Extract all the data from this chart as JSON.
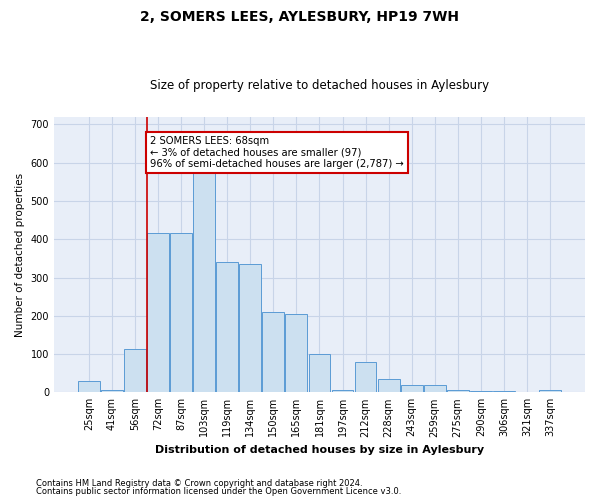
{
  "title": "2, SOMERS LEES, AYLESBURY, HP19 7WH",
  "subtitle": "Size of property relative to detached houses in Aylesbury",
  "xlabel": "Distribution of detached houses by size in Aylesbury",
  "ylabel": "Number of detached properties",
  "footnote1": "Contains HM Land Registry data © Crown copyright and database right 2024.",
  "footnote2": "Contains public sector information licensed under the Open Government Licence v3.0.",
  "bar_color": "#cce0f0",
  "bar_edge_color": "#5b9bd5",
  "annotation_box_color": "#ffffff",
  "annotation_border_color": "#cc0000",
  "vline_color": "#cc0000",
  "grid_color": "#c8d4e8",
  "background_color": "#e8eef8",
  "categories": [
    "25sqm",
    "41sqm",
    "56sqm",
    "72sqm",
    "87sqm",
    "103sqm",
    "119sqm",
    "134sqm",
    "150sqm",
    "165sqm",
    "181sqm",
    "197sqm",
    "212sqm",
    "228sqm",
    "243sqm",
    "259sqm",
    "275sqm",
    "290sqm",
    "306sqm",
    "321sqm",
    "337sqm"
  ],
  "values": [
    30,
    5,
    113,
    415,
    415,
    580,
    340,
    335,
    210,
    205,
    100,
    5,
    80,
    35,
    20,
    18,
    5,
    3,
    3,
    2,
    5
  ],
  "vline_x": 2.5,
  "annotation_text": "2 SOMERS LEES: 68sqm\n← 3% of detached houses are smaller (97)\n96% of semi-detached houses are larger (2,787) →",
  "ylim": [
    0,
    720
  ],
  "yticks": [
    0,
    100,
    200,
    300,
    400,
    500,
    600,
    700
  ]
}
